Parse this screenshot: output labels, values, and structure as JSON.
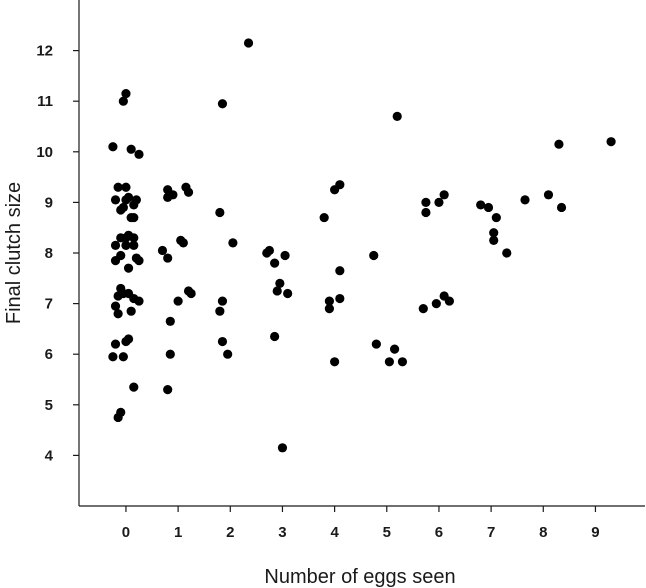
{
  "chart_data": {
    "type": "scatter",
    "title": "",
    "xlabel": "Number of eggs seen",
    "ylabel": "Final clutch size",
    "xlim": [
      -0.9,
      9.95
    ],
    "ylim": [
      3.0,
      13.0
    ],
    "xticks": [
      0,
      1,
      2,
      3,
      4,
      5,
      6,
      7,
      8,
      9
    ],
    "yticks": [
      4,
      5,
      6,
      7,
      8,
      9,
      10,
      11,
      12
    ],
    "grid": false,
    "legend": "none",
    "marker_color": "#000000",
    "points": [
      {
        "x": -0.25,
        "y": 5.95
      },
      {
        "x": -0.15,
        "y": 4.75
      },
      {
        "x": -0.1,
        "y": 4.85
      },
      {
        "x": -0.2,
        "y": 6.2
      },
      {
        "x": -0.05,
        "y": 5.95
      },
      {
        "x": 0.15,
        "y": 5.35
      },
      {
        "x": 0.0,
        "y": 6.25
      },
      {
        "x": 0.05,
        "y": 6.3
      },
      {
        "x": -0.15,
        "y": 6.8
      },
      {
        "x": -0.2,
        "y": 6.95
      },
      {
        "x": 0.1,
        "y": 6.85
      },
      {
        "x": -0.15,
        "y": 7.15
      },
      {
        "x": -0.05,
        "y": 7.2
      },
      {
        "x": 0.05,
        "y": 7.2
      },
      {
        "x": 0.15,
        "y": 7.1
      },
      {
        "x": 0.25,
        "y": 7.05
      },
      {
        "x": -0.1,
        "y": 7.3
      },
      {
        "x": 0.05,
        "y": 7.7
      },
      {
        "x": -0.2,
        "y": 7.85
      },
      {
        "x": -0.1,
        "y": 7.95
      },
      {
        "x": 0.2,
        "y": 7.9
      },
      {
        "x": 0.25,
        "y": 7.85
      },
      {
        "x": -0.2,
        "y": 8.15
      },
      {
        "x": 0.0,
        "y": 8.15
      },
      {
        "x": 0.15,
        "y": 8.15
      },
      {
        "x": -0.1,
        "y": 8.3
      },
      {
        "x": 0.0,
        "y": 8.3
      },
      {
        "x": 0.05,
        "y": 8.35
      },
      {
        "x": 0.15,
        "y": 8.3
      },
      {
        "x": 0.1,
        "y": 8.7
      },
      {
        "x": 0.15,
        "y": 8.7
      },
      {
        "x": -0.1,
        "y": 8.85
      },
      {
        "x": -0.05,
        "y": 8.9
      },
      {
        "x": 0.15,
        "y": 8.95
      },
      {
        "x": -0.2,
        "y": 9.05
      },
      {
        "x": 0.0,
        "y": 9.05
      },
      {
        "x": 0.05,
        "y": 9.1
      },
      {
        "x": 0.2,
        "y": 9.05
      },
      {
        "x": -0.15,
        "y": 9.3
      },
      {
        "x": 0.0,
        "y": 9.3
      },
      {
        "x": -0.25,
        "y": 10.1
      },
      {
        "x": 0.1,
        "y": 10.05
      },
      {
        "x": 0.25,
        "y": 9.95
      },
      {
        "x": -0.05,
        "y": 11.0
      },
      {
        "x": 0.0,
        "y": 11.15
      },
      {
        "x": 0.8,
        "y": 5.3
      },
      {
        "x": 0.85,
        "y": 6.0
      },
      {
        "x": 0.85,
        "y": 6.65
      },
      {
        "x": 1.0,
        "y": 7.05
      },
      {
        "x": 1.2,
        "y": 7.25
      },
      {
        "x": 1.25,
        "y": 7.2
      },
      {
        "x": 0.7,
        "y": 8.05
      },
      {
        "x": 0.8,
        "y": 7.9
      },
      {
        "x": 1.05,
        "y": 8.25
      },
      {
        "x": 1.1,
        "y": 8.2
      },
      {
        "x": 0.8,
        "y": 9.1
      },
      {
        "x": 0.8,
        "y": 9.25
      },
      {
        "x": 0.9,
        "y": 9.15
      },
      {
        "x": 1.15,
        "y": 9.3
      },
      {
        "x": 1.2,
        "y": 9.2
      },
      {
        "x": 1.8,
        "y": 6.85
      },
      {
        "x": 1.85,
        "y": 7.05
      },
      {
        "x": 1.85,
        "y": 6.25
      },
      {
        "x": 1.95,
        "y": 6.0
      },
      {
        "x": 1.8,
        "y": 8.8
      },
      {
        "x": 2.05,
        "y": 8.2
      },
      {
        "x": 1.85,
        "y": 10.95
      },
      {
        "x": 2.35,
        "y": 12.15
      },
      {
        "x": 2.7,
        "y": 8.0
      },
      {
        "x": 2.75,
        "y": 8.05
      },
      {
        "x": 2.85,
        "y": 7.8
      },
      {
        "x": 3.05,
        "y": 7.95
      },
      {
        "x": 2.9,
        "y": 7.25
      },
      {
        "x": 2.95,
        "y": 7.4
      },
      {
        "x": 3.1,
        "y": 7.2
      },
      {
        "x": 2.85,
        "y": 6.35
      },
      {
        "x": 3.0,
        "y": 4.15
      },
      {
        "x": 3.8,
        "y": 8.7
      },
      {
        "x": 4.0,
        "y": 9.25
      },
      {
        "x": 4.1,
        "y": 9.35
      },
      {
        "x": 4.1,
        "y": 7.65
      },
      {
        "x": 3.9,
        "y": 7.05
      },
      {
        "x": 3.9,
        "y": 6.9
      },
      {
        "x": 4.1,
        "y": 7.1
      },
      {
        "x": 4.0,
        "y": 5.85
      },
      {
        "x": 4.75,
        "y": 7.95
      },
      {
        "x": 4.8,
        "y": 6.2
      },
      {
        "x": 5.05,
        "y": 5.85
      },
      {
        "x": 5.15,
        "y": 6.1
      },
      {
        "x": 5.3,
        "y": 5.85
      },
      {
        "x": 5.2,
        "y": 10.7
      },
      {
        "x": 5.7,
        "y": 6.9
      },
      {
        "x": 5.75,
        "y": 8.8
      },
      {
        "x": 5.75,
        "y": 9.0
      },
      {
        "x": 5.95,
        "y": 7.0
      },
      {
        "x": 6.0,
        "y": 9.0
      },
      {
        "x": 6.1,
        "y": 9.15
      },
      {
        "x": 6.1,
        "y": 7.15
      },
      {
        "x": 6.2,
        "y": 7.05
      },
      {
        "x": 6.8,
        "y": 8.95
      },
      {
        "x": 6.95,
        "y": 8.9
      },
      {
        "x": 7.05,
        "y": 8.25
      },
      {
        "x": 7.05,
        "y": 8.4
      },
      {
        "x": 7.1,
        "y": 8.7
      },
      {
        "x": 7.3,
        "y": 8.0
      },
      {
        "x": 7.65,
        "y": 9.05
      },
      {
        "x": 8.1,
        "y": 9.15
      },
      {
        "x": 8.3,
        "y": 10.15
      },
      {
        "x": 8.35,
        "y": 8.9
      },
      {
        "x": 9.3,
        "y": 10.2
      }
    ]
  }
}
